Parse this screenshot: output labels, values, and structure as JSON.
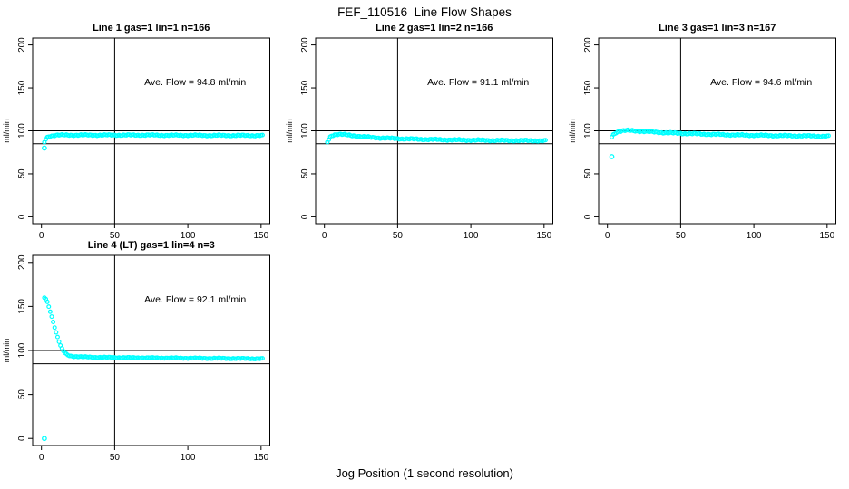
{
  "figure": {
    "title": "FEF_110516  Line Flow Shapes",
    "xlabel": "Jog Position (1 second resolution)",
    "background_color": "#FFFFFF",
    "axis_color": "#000000",
    "text_color": "#000000",
    "marker_color": "#00FFFF",
    "marker": "open-circle"
  },
  "chart_data": [
    {
      "type": "scatter",
      "title": "Line 1 gas=1 lin=1 n=166",
      "n": 166,
      "annotation": "Ave. Flow =  94.8  ml/min",
      "ave_flow_ml_min": 94.8,
      "ylabel": "ml/min",
      "xlim": [
        0,
        150
      ],
      "ylim": [
        0,
        200
      ],
      "xticks": [
        0,
        50,
        100,
        150
      ],
      "yticks": [
        0,
        50,
        100,
        150,
        200
      ],
      "ref_hlines": [
        85,
        100
      ],
      "ref_vline": 50,
      "grid": false,
      "sample_step": 1,
      "jitter": 0.8,
      "outliers": [
        [
          2,
          80
        ]
      ],
      "series": [
        {
          "name": "flow",
          "profile_points": [
            [
              2,
              87
            ],
            [
              3,
              90.5
            ],
            [
              4,
              92.5
            ],
            [
              5,
              93.5
            ],
            [
              6,
              94
            ],
            [
              8,
              94.5
            ],
            [
              11,
              95
            ],
            [
              15,
              95
            ],
            [
              20,
              95
            ],
            [
              27,
              95
            ],
            [
              35,
              95
            ],
            [
              45,
              95
            ],
            [
              55,
              95
            ],
            [
              65,
              95
            ],
            [
              75,
              95
            ],
            [
              85,
              94.8
            ],
            [
              95,
              94.8
            ],
            [
              105,
              94.8
            ],
            [
              115,
              94.6
            ],
            [
              125,
              94.6
            ],
            [
              135,
              94.6
            ],
            [
              143,
              94.5
            ],
            [
              151,
              94.5
            ]
          ]
        }
      ]
    },
    {
      "type": "scatter",
      "title": "Line 2 gas=1 lin=2 n=166",
      "n": 166,
      "annotation": "Ave. Flow =  91.1  ml/min",
      "ave_flow_ml_min": 91.1,
      "ylabel": "ml/min",
      "xlim": [
        0,
        150
      ],
      "ylim": [
        0,
        200
      ],
      "xticks": [
        0,
        50,
        100,
        150
      ],
      "yticks": [
        0,
        50,
        100,
        150,
        200
      ],
      "ref_hlines": [
        85,
        100
      ],
      "ref_vline": 50,
      "grid": false,
      "sample_step": 1,
      "jitter": 0.9,
      "outliers": [],
      "series": [
        {
          "name": "flow",
          "profile_points": [
            [
              2,
              87
            ],
            [
              3,
              90
            ],
            [
              4,
              93
            ],
            [
              5,
              94.5
            ],
            [
              7,
              95.5
            ],
            [
              9,
              96
            ],
            [
              12,
              95.8
            ],
            [
              15,
              95.2
            ],
            [
              18,
              94.6
            ],
            [
              22,
              94
            ],
            [
              26,
              93.2
            ],
            [
              30,
              92.6
            ],
            [
              35,
              92
            ],
            [
              40,
              91.6
            ],
            [
              46,
              91.2
            ],
            [
              52,
              90.8
            ],
            [
              60,
              90.4
            ],
            [
              70,
              90
            ],
            [
              80,
              89.7
            ],
            [
              90,
              89.4
            ],
            [
              100,
              89.2
            ],
            [
              110,
              89
            ],
            [
              120,
              88.8
            ],
            [
              130,
              88.7
            ],
            [
              140,
              88.6
            ],
            [
              151,
              88.5
            ]
          ]
        }
      ]
    },
    {
      "type": "scatter",
      "title": "Line 3 gas=1 lin=3 n=167",
      "n": 167,
      "annotation": "Ave. Flow =  94.6  ml/min",
      "ave_flow_ml_min": 94.6,
      "ylabel": "ml/min",
      "xlim": [
        0,
        150
      ],
      "ylim": [
        0,
        200
      ],
      "xticks": [
        0,
        50,
        100,
        150
      ],
      "yticks": [
        0,
        50,
        100,
        150,
        200
      ],
      "ref_hlines": [
        85,
        100
      ],
      "ref_vline": 50,
      "grid": false,
      "sample_step": 1,
      "jitter": 0.9,
      "outliers": [
        [
          3,
          70
        ]
      ],
      "series": [
        {
          "name": "flow",
          "profile_points": [
            [
              3,
              93
            ],
            [
              4,
              95.5
            ],
            [
              5,
              97
            ],
            [
              6,
              98.2
            ],
            [
              8,
              99.4
            ],
            [
              10,
              100
            ],
            [
              13,
              100.3
            ],
            [
              16,
              100.2
            ],
            [
              20,
              99.8
            ],
            [
              24,
              99.4
            ],
            [
              28,
              99
            ],
            [
              33,
              98.4
            ],
            [
              38,
              97.9
            ],
            [
              44,
              97.4
            ],
            [
              50,
              97
            ],
            [
              57,
              96.6
            ],
            [
              65,
              96.2
            ],
            [
              73,
              95.8
            ],
            [
              82,
              95.4
            ],
            [
              92,
              95
            ],
            [
              102,
              94.8
            ],
            [
              112,
              94.5
            ],
            [
              122,
              94.3
            ],
            [
              132,
              94.1
            ],
            [
              142,
              93.9
            ],
            [
              151,
              93.7
            ]
          ]
        }
      ]
    },
    {
      "type": "scatter",
      "title": "Line 4 (LT) gas=1 lin=4 n=3",
      "n": 3,
      "annotation": "Ave. Flow =  92.1  ml/min",
      "ave_flow_ml_min": 92.1,
      "ylabel": "ml/min",
      "xlim": [
        0,
        150
      ],
      "ylim": [
        0,
        200
      ],
      "xticks": [
        0,
        50,
        100,
        150
      ],
      "yticks": [
        0,
        50,
        100,
        150,
        200
      ],
      "ref_hlines": [
        85,
        100
      ],
      "ref_vline": 50,
      "grid": false,
      "sample_step": 1,
      "jitter": 0.6,
      "outliers": [
        [
          2,
          0
        ]
      ],
      "series": [
        {
          "name": "flow",
          "profile_points": [
            [
              2,
              160
            ],
            [
              3,
              158.5
            ],
            [
              4,
              155
            ],
            [
              5,
              150
            ],
            [
              6,
              144.5
            ],
            [
              7,
              138.5
            ],
            [
              8,
              132.5
            ],
            [
              9,
              126.5
            ],
            [
              10,
              120.5
            ],
            [
              11,
              115
            ],
            [
              12,
              110
            ],
            [
              13,
              105.5
            ],
            [
              14,
              102
            ],
            [
              15,
              99.3
            ],
            [
              16,
              97.3
            ],
            [
              17,
              95.8
            ],
            [
              18,
              94.8
            ],
            [
              19,
              94.2
            ],
            [
              20,
              93.8
            ],
            [
              22,
              93.3
            ],
            [
              25,
              93
            ],
            [
              28,
              92.7
            ],
            [
              32,
              92.5
            ],
            [
              36,
              92.3
            ],
            [
              40,
              92.2
            ],
            [
              45,
              92.1
            ],
            [
              50,
              92
            ],
            [
              56,
              91.9
            ],
            [
              62,
              91.8
            ],
            [
              70,
              91.7
            ],
            [
              78,
              91.6
            ],
            [
              86,
              91.5
            ],
            [
              94,
              91.4
            ],
            [
              102,
              91.3
            ],
            [
              110,
              91.2
            ],
            [
              118,
              91.1
            ],
            [
              126,
              91
            ],
            [
              134,
              90.9
            ],
            [
              142,
              90.8
            ],
            [
              151,
              90.7
            ]
          ]
        }
      ]
    }
  ]
}
